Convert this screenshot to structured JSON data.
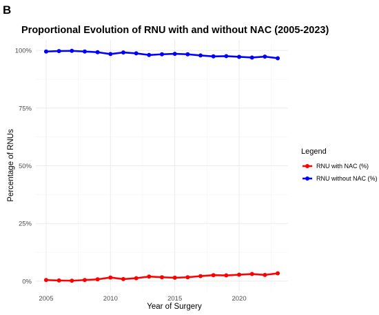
{
  "panel_label": "B",
  "chart_data": {
    "type": "line",
    "title": "Proportional Evolution of RNU with and without NAC (2005-2023)",
    "xlabel": "Year of Surgery",
    "ylabel": "Percentage of RNUs",
    "xlim": [
      2005,
      2023
    ],
    "ylim": [
      0,
      100
    ],
    "x_ticks": [
      2005,
      2010,
      2015,
      2020
    ],
    "x_tick_labels": [
      "2005",
      "2010",
      "2015",
      "2020"
    ],
    "y_ticks": [
      0,
      25,
      50,
      75,
      100
    ],
    "y_tick_labels": [
      "0%",
      "25%",
      "50%",
      "75%",
      "100%"
    ],
    "grid": true,
    "legend": {
      "title": "Legend",
      "placement": "right"
    },
    "x": [
      2005,
      2006,
      2007,
      2008,
      2009,
      2010,
      2011,
      2012,
      2013,
      2014,
      2015,
      2016,
      2017,
      2018,
      2019,
      2020,
      2021,
      2022,
      2023
    ],
    "series": [
      {
        "name": "RNU with NAC (%)",
        "color": "#ff0000",
        "values": [
          0.5,
          0.3,
          0.2,
          0.5,
          0.8,
          1.6,
          0.9,
          1.3,
          2.0,
          1.7,
          1.5,
          1.7,
          2.2,
          2.6,
          2.5,
          2.8,
          3.1,
          2.7,
          3.4
        ]
      },
      {
        "name": "RNU without NAC (%)",
        "color": "#0000ff",
        "values": [
          99.5,
          99.7,
          99.8,
          99.5,
          99.2,
          98.4,
          99.1,
          98.7,
          98.0,
          98.3,
          98.5,
          98.3,
          97.8,
          97.4,
          97.5,
          97.2,
          96.9,
          97.3,
          96.6
        ]
      }
    ]
  }
}
